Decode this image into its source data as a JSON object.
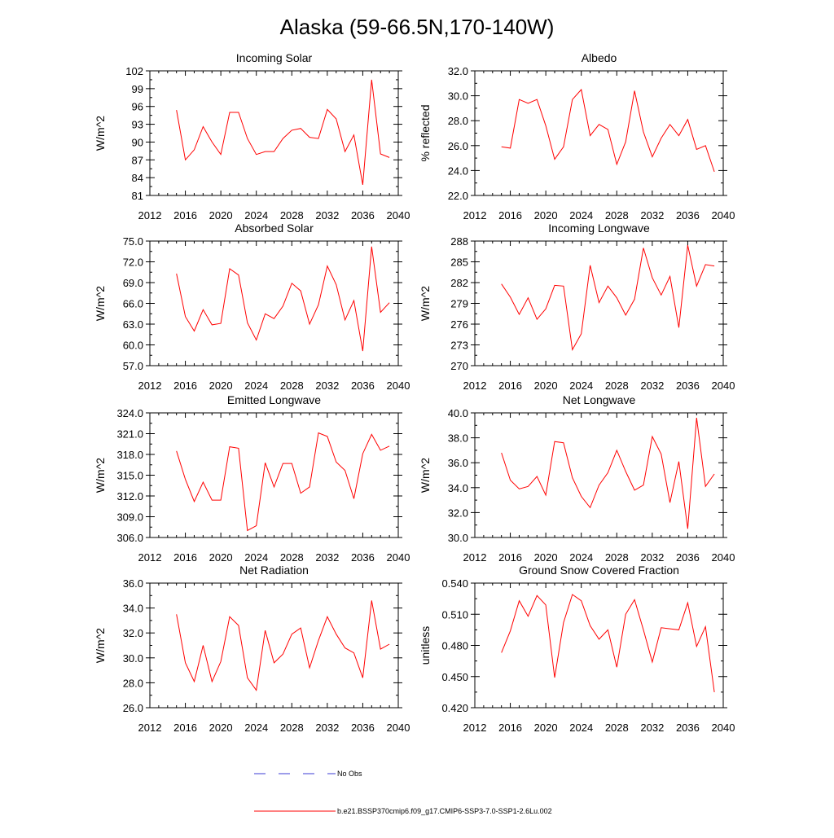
{
  "figure": {
    "title": "Alaska (59-66.5N,170-140W)",
    "legend": [
      {
        "label": "No Obs",
        "style": "dashed",
        "color": "#3b3bd6"
      },
      {
        "label": "b.e21.BSSP370cmip6.f09_g17.CMIP6-SSP3-7.0-SSP1-2.6Lu.002",
        "style": "solid",
        "color": "#ff0000"
      }
    ]
  },
  "chart_data": [
    {
      "type": "line",
      "title": "Incoming Solar",
      "xlabel": "",
      "ylabel": "W/m^2",
      "xlim": [
        2012,
        2040
      ],
      "xticks": [
        "2012",
        "2016",
        "2020",
        "2024",
        "2028",
        "2032",
        "2036",
        "2040"
      ],
      "ylim": [
        81,
        102
      ],
      "yticks": [
        "81",
        "84",
        "87",
        "90",
        "93",
        "96",
        "99",
        "102"
      ],
      "series": [
        {
          "name": "b.e21.BSSP370cmip6.f09_g17.CMIP6-SSP3-7.0-SSP1-2.6Lu.002",
          "color": "#ff0000",
          "x": [
            2015,
            2016,
            2017,
            2018,
            2019,
            2020,
            2021,
            2022,
            2023,
            2024,
            2025,
            2026,
            2027,
            2028,
            2029,
            2030,
            2031,
            2032,
            2033,
            2034,
            2035,
            2036,
            2037,
            2038,
            2039
          ],
          "y": [
            95.4,
            87.0,
            88.7,
            92.6,
            90.0,
            87.9,
            95.0,
            95.0,
            90.6,
            87.9,
            88.4,
            88.4,
            90.6,
            92.0,
            92.3,
            90.8,
            90.6,
            95.5,
            93.9,
            88.4,
            91.2,
            82.8,
            100.5,
            88.0,
            87.4
          ]
        }
      ]
    },
    {
      "type": "line",
      "title": "Albedo",
      "xlabel": "",
      "ylabel": "% reflected",
      "xlim": [
        2012,
        2040
      ],
      "xticks": [
        "2012",
        "2016",
        "2020",
        "2024",
        "2028",
        "2032",
        "2036",
        "2040"
      ],
      "ylim": [
        22,
        32
      ],
      "yticks": [
        "22.0",
        "24.0",
        "26.0",
        "28.0",
        "30.0",
        "32.0"
      ],
      "series": [
        {
          "name": "b.e21.BSSP370cmip6.f09_g17.CMIP6-SSP3-7.0-SSP1-2.6Lu.002",
          "color": "#ff0000",
          "x": [
            2015,
            2016,
            2017,
            2018,
            2019,
            2020,
            2021,
            2022,
            2023,
            2024,
            2025,
            2026,
            2027,
            2028,
            2029,
            2030,
            2031,
            2032,
            2033,
            2034,
            2035,
            2036,
            2037,
            2038,
            2039
          ],
          "y": [
            25.9,
            25.8,
            29.7,
            29.4,
            29.7,
            27.6,
            24.9,
            25.9,
            29.7,
            30.5,
            26.8,
            27.7,
            27.3,
            24.5,
            26.3,
            30.4,
            27.1,
            25.1,
            26.6,
            27.7,
            26.8,
            28.1,
            25.7,
            26.0,
            23.9
          ]
        }
      ]
    },
    {
      "type": "line",
      "title": "Absorbed Solar",
      "xlabel": "",
      "ylabel": "W/m^2",
      "xlim": [
        2012,
        2040
      ],
      "xticks": [
        "2012",
        "2016",
        "2020",
        "2024",
        "2028",
        "2032",
        "2036",
        "2040"
      ],
      "ylim": [
        57,
        75
      ],
      "yticks": [
        "57.0",
        "60.0",
        "63.0",
        "66.0",
        "69.0",
        "72.0",
        "75.0"
      ],
      "series": [
        {
          "name": "b.e21.BSSP370cmip6.f09_g17.CMIP6-SSP3-7.0-SSP1-2.6Lu.002",
          "color": "#ff0000",
          "x": [
            2015,
            2016,
            2017,
            2018,
            2019,
            2020,
            2021,
            2022,
            2023,
            2024,
            2025,
            2026,
            2027,
            2028,
            2029,
            2030,
            2031,
            2032,
            2033,
            2034,
            2035,
            2036,
            2037,
            2038,
            2039
          ],
          "y": [
            70.3,
            64.1,
            62.0,
            65.1,
            62.9,
            63.1,
            71.0,
            70.1,
            63.2,
            60.7,
            64.5,
            63.8,
            65.6,
            68.9,
            67.8,
            63.0,
            65.8,
            71.4,
            68.7,
            63.6,
            66.4,
            59.1,
            74.2,
            64.7,
            66.1
          ]
        }
      ]
    },
    {
      "type": "line",
      "title": "Incoming Longwave",
      "xlabel": "",
      "ylabel": "W/m^2",
      "xlim": [
        2012,
        2040
      ],
      "xticks": [
        "2012",
        "2016",
        "2020",
        "2024",
        "2028",
        "2032",
        "2036",
        "2040"
      ],
      "ylim": [
        270,
        288
      ],
      "yticks": [
        "270",
        "273",
        "276",
        "279",
        "282",
        "285",
        "288"
      ],
      "series": [
        {
          "name": "b.e21.BSSP370cmip6.f09_g17.CMIP6-SSP3-7.0-SSP1-2.6Lu.002",
          "color": "#ff0000",
          "x": [
            2015,
            2016,
            2017,
            2018,
            2019,
            2020,
            2021,
            2022,
            2023,
            2024,
            2025,
            2026,
            2027,
            2028,
            2029,
            2030,
            2031,
            2032,
            2033,
            2034,
            2035,
            2036,
            2037,
            2038,
            2039
          ],
          "y": [
            281.8,
            279.9,
            277.4,
            279.8,
            276.7,
            278.2,
            281.6,
            281.5,
            272.3,
            274.6,
            284.5,
            279.1,
            281.5,
            279.8,
            277.3,
            279.6,
            287.0,
            282.7,
            280.2,
            282.9,
            275.5,
            287.4,
            281.5,
            284.6,
            284.4
          ]
        }
      ]
    },
    {
      "type": "line",
      "title": "Emitted Longwave",
      "xlabel": "",
      "ylabel": "W/m^2",
      "xlim": [
        2012,
        2040
      ],
      "xticks": [
        "2012",
        "2016",
        "2020",
        "2024",
        "2028",
        "2032",
        "2036",
        "2040"
      ],
      "ylim": [
        306,
        324
      ],
      "yticks": [
        "306.0",
        "309.0",
        "312.0",
        "315.0",
        "318.0",
        "321.0",
        "324.0"
      ],
      "series": [
        {
          "name": "b.e21.BSSP370cmip6.f09_g17.CMIP6-SSP3-7.0-SSP1-2.6Lu.002",
          "color": "#ff0000",
          "x": [
            2015,
            2016,
            2017,
            2018,
            2019,
            2020,
            2021,
            2022,
            2023,
            2024,
            2025,
            2026,
            2027,
            2028,
            2029,
            2030,
            2031,
            2032,
            2033,
            2034,
            2035,
            2036,
            2037,
            2038,
            2039
          ],
          "y": [
            318.5,
            314.4,
            311.2,
            314.0,
            311.4,
            311.4,
            319.1,
            318.9,
            307.0,
            307.7,
            316.8,
            313.3,
            316.7,
            316.7,
            312.4,
            313.3,
            321.1,
            320.6,
            316.9,
            315.7,
            311.6,
            318.1,
            320.9,
            318.6,
            319.2
          ]
        }
      ]
    },
    {
      "type": "line",
      "title": "Net Longwave",
      "xlabel": "",
      "ylabel": "W/m^2",
      "xlim": [
        2012,
        2040
      ],
      "xticks": [
        "2012",
        "2016",
        "2020",
        "2024",
        "2028",
        "2032",
        "2036",
        "2040"
      ],
      "ylim": [
        30,
        40
      ],
      "yticks": [
        "30.0",
        "32.0",
        "34.0",
        "36.0",
        "38.0",
        "40.0"
      ],
      "series": [
        {
          "name": "b.e21.BSSP370cmip6.f09_g17.CMIP6-SSP3-7.0-SSP1-2.6Lu.002",
          "color": "#ff0000",
          "x": [
            2015,
            2016,
            2017,
            2018,
            2019,
            2020,
            2021,
            2022,
            2023,
            2024,
            2025,
            2026,
            2027,
            2028,
            2029,
            2030,
            2031,
            2032,
            2033,
            2034,
            2035,
            2036,
            2037,
            2038,
            2039
          ],
          "y": [
            36.8,
            34.6,
            33.9,
            34.1,
            34.9,
            33.4,
            37.7,
            37.6,
            34.8,
            33.3,
            32.4,
            34.2,
            35.2,
            37.0,
            35.3,
            33.8,
            34.2,
            38.1,
            36.7,
            32.8,
            36.1,
            30.7,
            39.6,
            34.1,
            35.1
          ]
        }
      ]
    },
    {
      "type": "line",
      "title": "Net Radiation",
      "xlabel": "",
      "ylabel": "W/m^2",
      "xlim": [
        2012,
        2040
      ],
      "xticks": [
        "2012",
        "2016",
        "2020",
        "2024",
        "2028",
        "2032",
        "2036",
        "2040"
      ],
      "ylim": [
        26,
        36
      ],
      "yticks": [
        "26.0",
        "28.0",
        "30.0",
        "32.0",
        "34.0",
        "36.0"
      ],
      "series": [
        {
          "name": "b.e21.BSSP370cmip6.f09_g17.CMIP6-SSP3-7.0-SSP1-2.6Lu.002",
          "color": "#ff0000",
          "x": [
            2015,
            2016,
            2017,
            2018,
            2019,
            2020,
            2021,
            2022,
            2023,
            2024,
            2025,
            2026,
            2027,
            2028,
            2029,
            2030,
            2031,
            2032,
            2033,
            2034,
            2035,
            2036,
            2037,
            2038,
            2039
          ],
          "y": [
            33.5,
            29.6,
            28.1,
            31.0,
            28.1,
            29.7,
            33.3,
            32.6,
            28.4,
            27.4,
            32.2,
            29.6,
            30.3,
            31.9,
            32.4,
            29.2,
            31.4,
            33.3,
            31.9,
            30.8,
            30.4,
            28.4,
            34.6,
            30.7,
            31.1
          ]
        }
      ]
    },
    {
      "type": "line",
      "title": "Ground Snow Covered Fraction",
      "xlabel": "",
      "ylabel": "unitless",
      "xlim": [
        2012,
        2040
      ],
      "xticks": [
        "2012",
        "2016",
        "2020",
        "2024",
        "2028",
        "2032",
        "2036",
        "2040"
      ],
      "ylim": [
        0.42,
        0.54
      ],
      "yticks": [
        "0.420",
        "0.450",
        "0.480",
        "0.510",
        "0.540"
      ],
      "series": [
        {
          "name": "b.e21.BSSP370cmip6.f09_g17.CMIP6-SSP3-7.0-SSP1-2.6Lu.002",
          "color": "#ff0000",
          "x": [
            2015,
            2016,
            2017,
            2018,
            2019,
            2020,
            2021,
            2022,
            2023,
            2024,
            2025,
            2026,
            2027,
            2028,
            2029,
            2030,
            2031,
            2032,
            2033,
            2034,
            2035,
            2036,
            2037,
            2038,
            2039
          ],
          "y": [
            0.473,
            0.494,
            0.523,
            0.508,
            0.528,
            0.519,
            0.449,
            0.502,
            0.529,
            0.523,
            0.499,
            0.486,
            0.495,
            0.459,
            0.51,
            0.524,
            0.495,
            0.464,
            0.497,
            0.496,
            0.495,
            0.521,
            0.479,
            0.498,
            0.435
          ]
        }
      ]
    }
  ]
}
